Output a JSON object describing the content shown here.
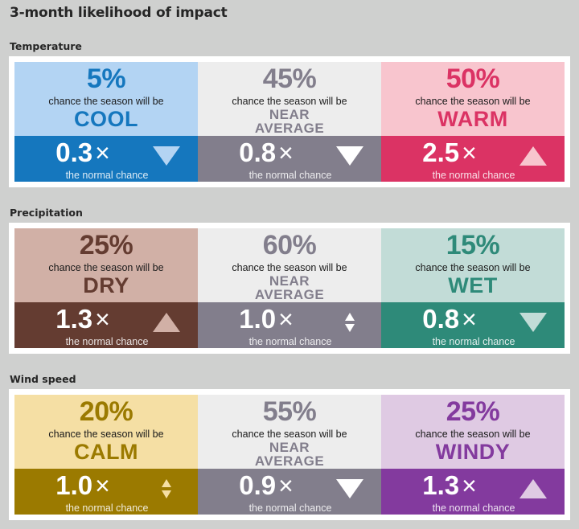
{
  "page_title": "3-month likelihood of impact",
  "chance_text": "chance the season will be",
  "normal_text": "the normal chance",
  "multiplier_symbol": "×",
  "sections": [
    {
      "title": "Temperature",
      "cards": [
        {
          "percent": "5%",
          "category": "COOL",
          "category_lines": [
            "COOL"
          ],
          "multiplier": "0.3",
          "trend": "down",
          "light_color": "#b3d4f3",
          "accent_color": "#1577be",
          "arrow_color": "#b3d4f3"
        },
        {
          "percent": "45%",
          "category": "NEAR AVERAGE",
          "category_lines": [
            "NEAR",
            "AVERAGE"
          ],
          "multiplier": "0.8",
          "trend": "down",
          "light_color": "#ededed",
          "accent_color": "#827e8c",
          "arrow_color": "#ffffff"
        },
        {
          "percent": "50%",
          "category": "WARM",
          "category_lines": [
            "WARM"
          ],
          "multiplier": "2.5",
          "trend": "up",
          "light_color": "#f8c5ce",
          "accent_color": "#db3364",
          "arrow_color": "#f8c5ce"
        }
      ]
    },
    {
      "title": "Precipitation",
      "cards": [
        {
          "percent": "25%",
          "category": "DRY",
          "category_lines": [
            "DRY"
          ],
          "multiplier": "1.3",
          "trend": "up",
          "light_color": "#d1b0a6",
          "accent_color": "#643c31",
          "arrow_color": "#d1b0a6"
        },
        {
          "percent": "60%",
          "category": "NEAR AVERAGE",
          "category_lines": [
            "NEAR",
            "AVERAGE"
          ],
          "multiplier": "1.0",
          "trend": "same",
          "light_color": "#ededed",
          "accent_color": "#827e8c",
          "arrow_color": "#ffffff"
        },
        {
          "percent": "15%",
          "category": "WET",
          "category_lines": [
            "WET"
          ],
          "multiplier": "0.8",
          "trend": "down",
          "light_color": "#c2dcd7",
          "accent_color": "#2e8a79",
          "arrow_color": "#c2dcd7"
        }
      ]
    },
    {
      "title": "Wind speed",
      "cards": [
        {
          "percent": "20%",
          "category": "CALM",
          "category_lines": [
            "CALM"
          ],
          "multiplier": "1.0",
          "trend": "same",
          "light_color": "#f5dfa4",
          "accent_color": "#9b7a00",
          "arrow_color": "#f5dfa4"
        },
        {
          "percent": "55%",
          "category": "NEAR AVERAGE",
          "category_lines": [
            "NEAR",
            "AVERAGE"
          ],
          "multiplier": "0.9",
          "trend": "down",
          "light_color": "#ededed",
          "accent_color": "#827e8c",
          "arrow_color": "#ffffff"
        },
        {
          "percent": "25%",
          "category": "WINDY",
          "category_lines": [
            "WINDY"
          ],
          "multiplier": "1.3",
          "trend": "up",
          "light_color": "#dfcae3",
          "accent_color": "#833a9e",
          "arrow_color": "#dfcae3"
        }
      ]
    }
  ]
}
